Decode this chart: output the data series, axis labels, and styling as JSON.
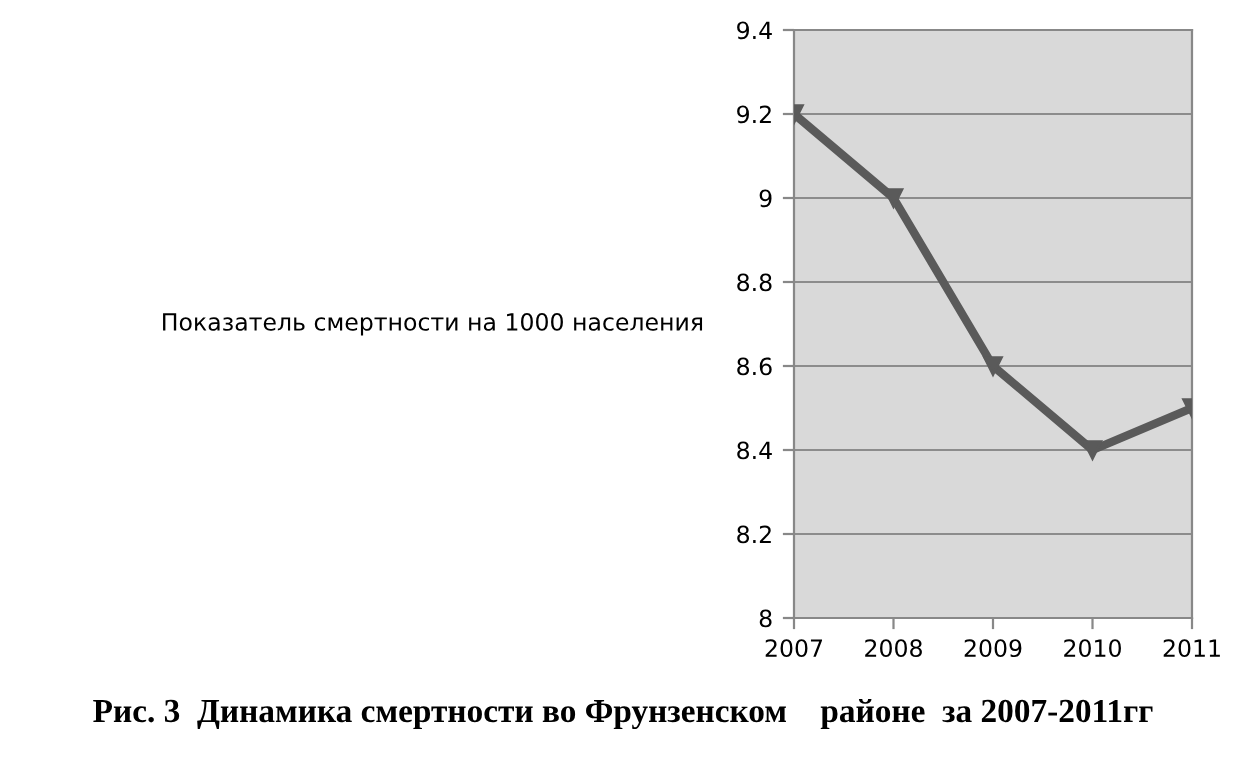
{
  "chart_data": {
    "type": "line",
    "ylabel": "Показатель смертности на 1000 населения",
    "x": [
      2007,
      2008,
      2009,
      2010,
      2011
    ],
    "series": [
      {
        "color": "#5a5a5a",
        "values": [
          9.2,
          9.0,
          8.6,
          8.4,
          8.5
        ]
      }
    ],
    "xlim": [
      2007,
      2011
    ],
    "xticks": [
      2007,
      2008,
      2009,
      2010,
      2011
    ],
    "ylim": [
      8,
      9.4
    ],
    "yticks": [
      8,
      8.2,
      8.4,
      8.6,
      8.8,
      9,
      9.2,
      9.4
    ],
    "grid": "y",
    "marker": "triangle",
    "line_style": "solid",
    "legend": false,
    "annotations": [
      "Рис. 3  Динамика смертности во Фрунзенском    районе  за 2007-2011гг"
    ]
  }
}
